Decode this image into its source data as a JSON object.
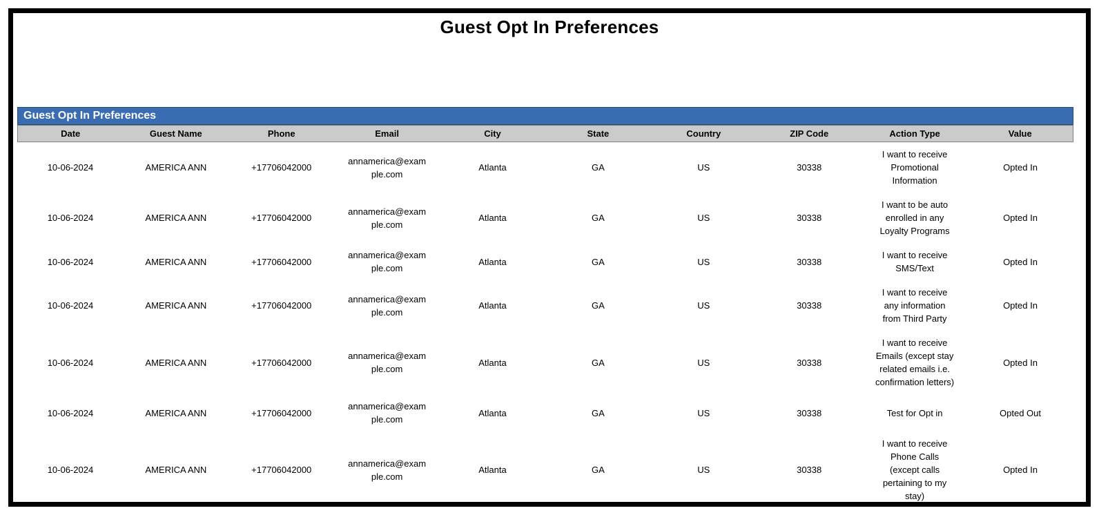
{
  "page_title": "Guest Opt In Preferences",
  "colors": {
    "page_border": "#000000",
    "caption_bar_bg": "#3A6CB1",
    "caption_bar_border": "#26497C",
    "caption_text": "#FFFFFF",
    "column_header_bg": "#CBCBCB",
    "column_header_border": "#7F7F7F"
  },
  "table": {
    "caption": "Guest Opt In Preferences",
    "columns": [
      "Date",
      "Guest Name",
      "Phone",
      "Email",
      "City",
      "State",
      "Country",
      "ZIP Code",
      "Action Type",
      "Value"
    ],
    "rows": [
      {
        "date": "10-06-2024",
        "guest_name": "AMERICA ANN",
        "phone": "+17706042000",
        "email": "annamerica@example.com",
        "city": "Atlanta",
        "state": "GA",
        "country": "US",
        "zip": "30338",
        "action_type": "I want to receive\nPromotional\nInformation",
        "value": "Opted In"
      },
      {
        "date": "10-06-2024",
        "guest_name": "AMERICA ANN",
        "phone": "+17706042000",
        "email": "annamerica@example.com",
        "city": "Atlanta",
        "state": "GA",
        "country": "US",
        "zip": "30338",
        "action_type": "I want to be auto\nenrolled in any\nLoyalty Programs",
        "value": "Opted In"
      },
      {
        "date": "10-06-2024",
        "guest_name": "AMERICA ANN",
        "phone": "+17706042000",
        "email": "annamerica@example.com",
        "city": "Atlanta",
        "state": "GA",
        "country": "US",
        "zip": "30338",
        "action_type": "I want to receive\nSMS/Text",
        "value": "Opted In"
      },
      {
        "date": "10-06-2024",
        "guest_name": "AMERICA ANN",
        "phone": "+17706042000",
        "email": "annamerica@example.com",
        "city": "Atlanta",
        "state": "GA",
        "country": "US",
        "zip": "30338",
        "action_type": "I want to receive\nany information\nfrom Third Party",
        "value": "Opted In"
      },
      {
        "date": "10-06-2024",
        "guest_name": "AMERICA ANN",
        "phone": "+17706042000",
        "email": "annamerica@example.com",
        "city": "Atlanta",
        "state": "GA",
        "country": "US",
        "zip": "30338",
        "action_type": "I want to receive\nEmails (except stay\nrelated emails i.e.\nconfirmation letters)",
        "value": "Opted In"
      },
      {
        "date": "10-06-2024",
        "guest_name": "AMERICA ANN",
        "phone": "+17706042000",
        "email": "annamerica@example.com",
        "city": "Atlanta",
        "state": "GA",
        "country": "US",
        "zip": "30338",
        "action_type": "Test for Opt in",
        "value": "Opted Out"
      },
      {
        "date": "10-06-2024",
        "guest_name": "AMERICA ANN",
        "phone": "+17706042000",
        "email": "annamerica@example.com",
        "city": "Atlanta",
        "state": "GA",
        "country": "US",
        "zip": "30338",
        "action_type": "I want to receive\nPhone Calls\n(except calls\npertaining to my\nstay)",
        "value": "Opted In"
      }
    ]
  }
}
